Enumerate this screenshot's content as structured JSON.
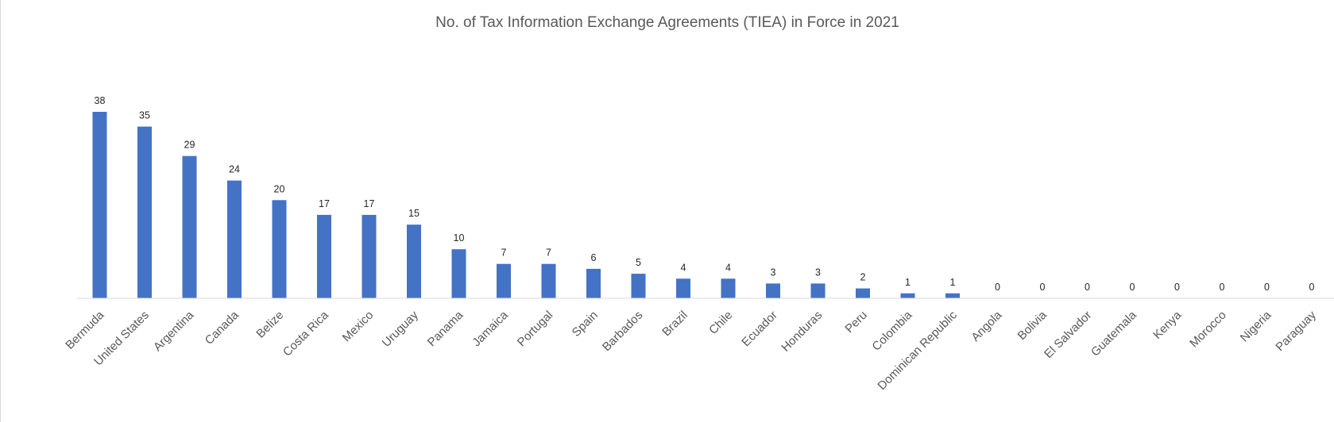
{
  "chart_data": {
    "type": "bar",
    "title": "No. of Tax Information Exchange Agreements (TIEA) in Force in 2021",
    "xlabel": "",
    "ylabel": "",
    "categories": [
      "Bermuda",
      "United States",
      "Argentina",
      "Canada",
      "Belize",
      "Costa Rica",
      "Mexico",
      "Uruguay",
      "Panama",
      "Jamaica",
      "Portugal",
      "Spain",
      "Barbados",
      "Brazil",
      "Chile",
      "Ecuador",
      "Honduras",
      "Peru",
      "Colombia",
      "Dominican Republic",
      "Angola",
      "Bolivia",
      "El Salvador",
      "Guatemala",
      "Kenya",
      "Morocco",
      "Nigeria",
      "Paraguay"
    ],
    "values": [
      38,
      35,
      29,
      24,
      20,
      17,
      17,
      15,
      10,
      7,
      7,
      6,
      5,
      4,
      4,
      3,
      3,
      2,
      1,
      1,
      0,
      0,
      0,
      0,
      0,
      0,
      0,
      0
    ],
    "ylim": [
      0,
      40
    ],
    "grid": false,
    "legend": "none",
    "data_labels": true,
    "bar_color": "#4472C4",
    "axis_color": "#d9d9d9"
  }
}
